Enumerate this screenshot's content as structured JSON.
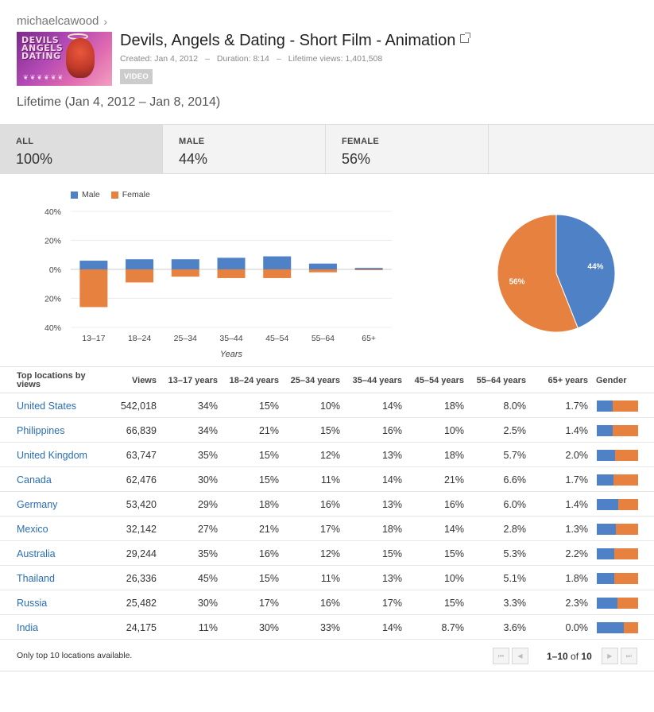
{
  "header": {
    "channel": "michaelcawood",
    "title": "Devils, Angels & Dating - Short Film - Animation",
    "created": "Created: Jan 4, 2012",
    "duration": "Duration: 8:14",
    "lifetime_views": "Lifetime views: 1,401,508",
    "badge": "VIDEO",
    "thumb_text": "DEVILS ANGELS DATING",
    "period": "Lifetime (Jan 4, 2012 – Jan 8, 2014)"
  },
  "tabs": [
    {
      "label": "ALL",
      "value": "100%"
    },
    {
      "label": "MALE",
      "value": "44%"
    },
    {
      "label": "FEMALE",
      "value": "56%"
    }
  ],
  "colors": {
    "male": "#4f81c7",
    "female": "#e6813f"
  },
  "chart_data": [
    {
      "type": "bar",
      "categories": [
        "13–17",
        "18–24",
        "25–34",
        "35–44",
        "45–54",
        "55–64",
        "65+"
      ],
      "series": [
        {
          "name": "Male",
          "values": [
            6,
            7,
            7,
            8,
            9,
            4,
            1
          ]
        },
        {
          "name": "Female",
          "values": [
            -26,
            -9,
            -5,
            -6,
            -6,
            -2,
            -0.5
          ]
        }
      ],
      "y_ticks": [
        "40%",
        "20%",
        "0%",
        "20%",
        "40%"
      ],
      "xlabel": "Years",
      "ylim": [
        -40,
        40
      ],
      "grid": true,
      "legend": "top-left"
    },
    {
      "type": "pie",
      "labels": [
        "Male",
        "Female"
      ],
      "values": [
        44,
        56
      ],
      "slice_labels": [
        "44%",
        "56%"
      ]
    }
  ],
  "table": {
    "headers": [
      "Top locations by views",
      "Views",
      "13–17 years",
      "18–24 years",
      "25–34 years",
      "35–44 years",
      "45–54 years",
      "55–64 years",
      "65+ years",
      "Gender"
    ],
    "rows": [
      {
        "country": "United States",
        "views": "542,018",
        "a": "34%",
        "b": "15%",
        "c": "10%",
        "d": "14%",
        "e": "18%",
        "f": "8.0%",
        "g": "1.7%",
        "male": 38
      },
      {
        "country": "Philippines",
        "views": "66,839",
        "a": "34%",
        "b": "21%",
        "c": "15%",
        "d": "16%",
        "e": "10%",
        "f": "2.5%",
        "g": "1.4%",
        "male": 38
      },
      {
        "country": "United Kingdom",
        "views": "63,747",
        "a": "35%",
        "b": "15%",
        "c": "12%",
        "d": "13%",
        "e": "18%",
        "f": "5.7%",
        "g": "2.0%",
        "male": 44
      },
      {
        "country": "Canada",
        "views": "62,476",
        "a": "30%",
        "b": "15%",
        "c": "11%",
        "d": "14%",
        "e": "21%",
        "f": "6.6%",
        "g": "1.7%",
        "male": 40
      },
      {
        "country": "Germany",
        "views": "53,420",
        "a": "29%",
        "b": "18%",
        "c": "16%",
        "d": "13%",
        "e": "16%",
        "f": "6.0%",
        "g": "1.4%",
        "male": 52
      },
      {
        "country": "Mexico",
        "views": "32,142",
        "a": "27%",
        "b": "21%",
        "c": "17%",
        "d": "18%",
        "e": "14%",
        "f": "2.8%",
        "g": "1.3%",
        "male": 46
      },
      {
        "country": "Australia",
        "views": "29,244",
        "a": "35%",
        "b": "16%",
        "c": "12%",
        "d": "15%",
        "e": "15%",
        "f": "5.3%",
        "g": "2.2%",
        "male": 42
      },
      {
        "country": "Thailand",
        "views": "26,336",
        "a": "45%",
        "b": "15%",
        "c": "11%",
        "d": "13%",
        "e": "10%",
        "f": "5.1%",
        "g": "1.8%",
        "male": 42
      },
      {
        "country": "Russia",
        "views": "25,482",
        "a": "30%",
        "b": "17%",
        "c": "16%",
        "d": "17%",
        "e": "15%",
        "f": "3.3%",
        "g": "2.3%",
        "male": 50
      },
      {
        "country": "India",
        "views": "24,175",
        "a": "11%",
        "b": "30%",
        "c": "33%",
        "d": "14%",
        "e": "8.7%",
        "f": "3.6%",
        "g": "0.0%",
        "male": 66
      }
    ]
  },
  "footer": {
    "note": "Only top 10 locations available.",
    "range": "1–10",
    "of": "of",
    "total": "10"
  }
}
